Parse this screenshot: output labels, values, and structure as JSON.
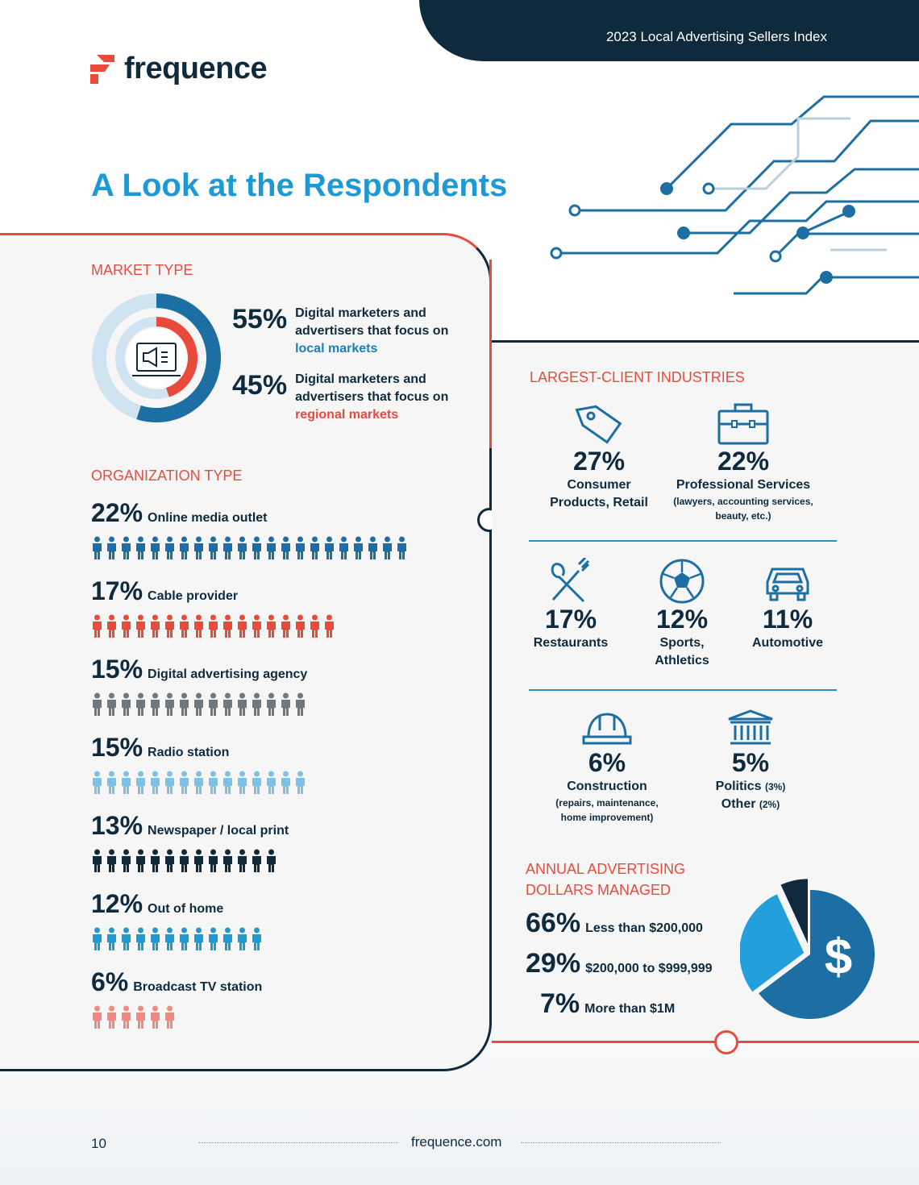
{
  "header": {
    "title": "2023 Local Advertising Sellers Index"
  },
  "logo": {
    "text": "frequence"
  },
  "page_title": "A Look at the Respondents",
  "colors": {
    "navy": "#0f2a3d",
    "blue": "#1d7fb8",
    "light_blue": "#1d99d6",
    "red": "#e84b3c"
  },
  "market_type": {
    "heading": "MARKET TYPE",
    "items": [
      {
        "pct": "55%",
        "text": "Digital marketers and advertisers that focus on ",
        "highlight": "local markets",
        "value": 55
      },
      {
        "pct": "45%",
        "text": "Digital marketers and advertisers that focus on ",
        "highlight": "regional markets",
        "value": 45
      }
    ]
  },
  "organization_type": {
    "heading": "ORGANIZATION TYPE",
    "items": [
      {
        "pct": "22%",
        "label": "Online media outlet",
        "icons": 22,
        "color": "#1d6fa3"
      },
      {
        "pct": "17%",
        "label": "Cable provider",
        "icons": 17,
        "color": "#e84b3c"
      },
      {
        "pct": "15%",
        "label": "Digital advertising agency",
        "icons": 15,
        "color": "#6e7880"
      },
      {
        "pct": "15%",
        "label": "Radio station",
        "icons": 15,
        "color": "#7cc2e8"
      },
      {
        "pct": "13%",
        "label": "Newspaper / local print",
        "icons": 13,
        "color": "#0f2a3d"
      },
      {
        "pct": "12%",
        "label": "Out of home",
        "icons": 12,
        "color": "#1d99d6"
      },
      {
        "pct": "6%",
        "label": "Broadcast TV station",
        "icons": 6,
        "color": "#f08a80"
      }
    ]
  },
  "industries": {
    "heading": "LARGEST-CLIENT INDUSTRIES",
    "items": [
      {
        "icon": "price-tag-icon",
        "pct": "27%",
        "label": "Consumer Products, Retail",
        "sub": ""
      },
      {
        "icon": "briefcase-icon",
        "pct": "22%",
        "label": "Professional Services",
        "sub": "(lawyers, accounting services, beauty, etc.)"
      },
      {
        "icon": "fork-spoon-icon",
        "pct": "17%",
        "label": "Restaurants",
        "sub": ""
      },
      {
        "icon": "soccer-ball-icon",
        "pct": "12%",
        "label": "Sports, Athletics",
        "sub": ""
      },
      {
        "icon": "car-icon",
        "pct": "11%",
        "label": "Automotive",
        "sub": ""
      },
      {
        "icon": "hard-hat-icon",
        "pct": "6%",
        "label": "Construction",
        "sub": "(repairs, maintenance, home improvement)"
      },
      {
        "icon": "government-building-icon",
        "pct": "5%",
        "label": "Politics",
        "label_note": "(3%)",
        "label2": "Other",
        "label2_note": "(2%)",
        "sub": ""
      }
    ]
  },
  "advertising": {
    "heading": "ANNUAL ADVERTISING DOLLARS MANAGED",
    "items": [
      {
        "pct": "66%",
        "label": "Less than $200,000"
      },
      {
        "pct": "29%",
        "label": "$200,000 to $999,999"
      },
      {
        "pct": "7%",
        "label": "More than $1M"
      }
    ],
    "pie_symbol": "$"
  },
  "chart_data": {
    "type": "pie",
    "categories": [
      "Less than $200,000",
      "$200,000 to $999,999",
      "More than $1M"
    ],
    "values": [
      66,
      29,
      7
    ],
    "colors": [
      "#1d6fa3",
      "#23a0dc",
      "#0f2a3d"
    ]
  },
  "footer": {
    "page_number": "10",
    "url": "frequence.com"
  }
}
